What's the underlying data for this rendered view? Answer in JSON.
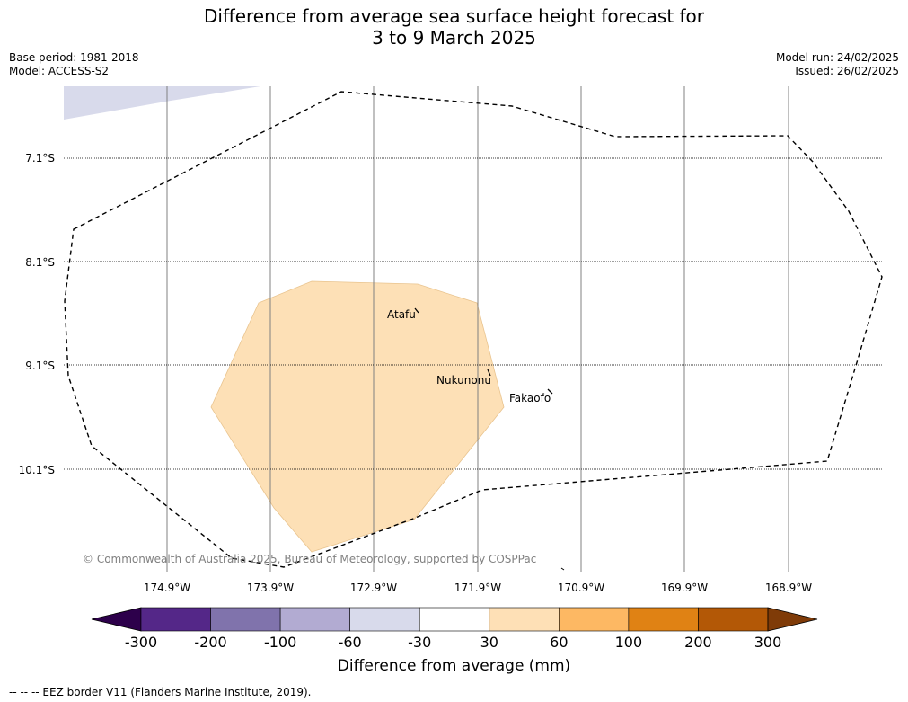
{
  "title_line1": "Difference from average sea surface height forecast for",
  "title_line2": "3 to 9 March 2025",
  "meta_left": {
    "base_period": "Base period: 1981-2018",
    "model": "Model: ACCESS-S2"
  },
  "meta_right": {
    "model_run": "Model run: 24/02/2025",
    "issued": "Issued: 26/02/2025"
  },
  "latitude_labels": [
    "7.1°S",
    "8.1°S",
    "9.1°S",
    "10.1°S"
  ],
  "longitude_labels": [
    "174.9°W",
    "173.9°W",
    "172.9°W",
    "171.9°W",
    "170.9°W",
    "169.9°W",
    "168.9°W"
  ],
  "places": {
    "atafu": "Atafu",
    "nukunonu": "Nukunonu",
    "fakaofo": "Fakaofo"
  },
  "copyright": "© Commonwealth of Australia 2025, Bureau of Meteorology, supported by COSPPac",
  "colorbar": {
    "ticks": [
      "-300",
      "-200",
      "-100",
      "-60",
      "-30",
      "30",
      "60",
      "100",
      "200",
      "300"
    ],
    "colors": [
      "#2d004b",
      "#542788",
      "#8073ac",
      "#b2abd2",
      "#d8daeb",
      "#ffffff",
      "#fee0b6",
      "#fdb863",
      "#e08214",
      "#b35806",
      "#7f3b08"
    ],
    "label": "Difference from average (mm)"
  },
  "footer": "--  --  -- EEZ border V11 (Flanders Marine Institute, 2019).",
  "colors": {
    "positive_region": "#fde0b6",
    "negative_region": "#d8daeb",
    "grid": "#808080"
  }
}
